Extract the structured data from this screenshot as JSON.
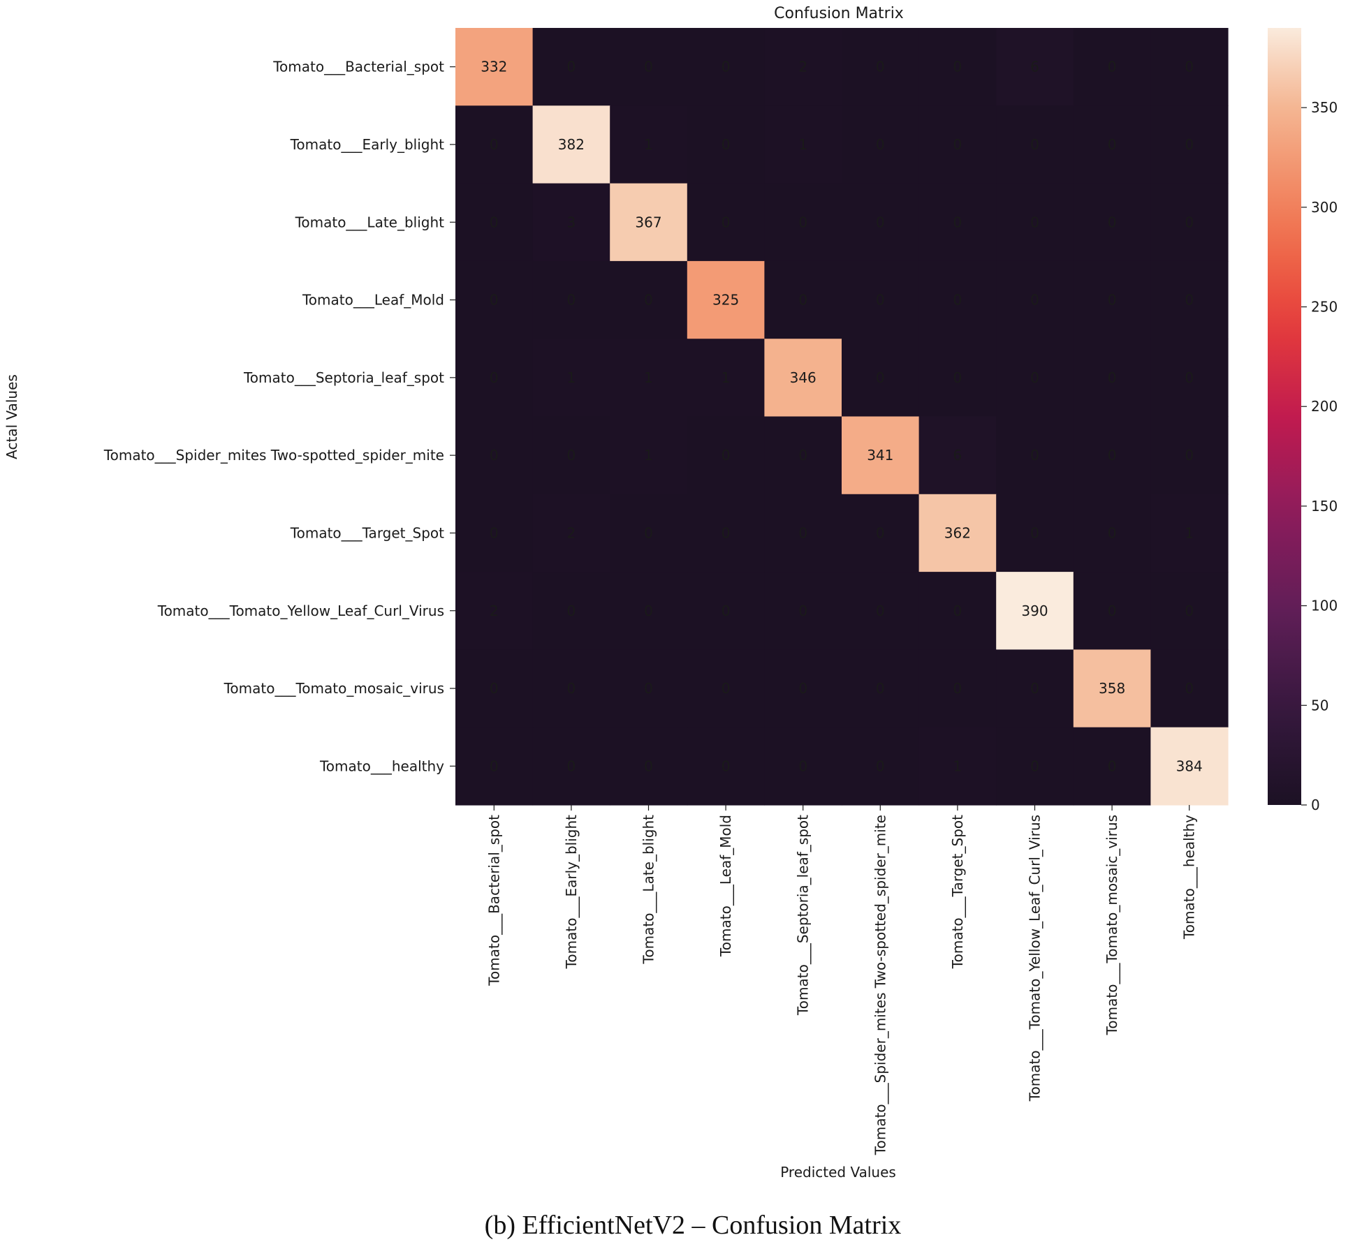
{
  "chart_data": {
    "type": "heatmap",
    "title": "Confusion Matrix",
    "xlabel": "Predicted Values",
    "ylabel": "Actal Values",
    "categories": [
      "Tomato___Bacterial_spot",
      "Tomato___Early_blight",
      "Tomato___Late_blight",
      "Tomato___Leaf_Mold",
      "Tomato___Septoria_leaf_spot",
      "Tomato___Spider_mites Two-spotted_spider_mite",
      "Tomato___Target_Spot",
      "Tomato___Tomato_Yellow_Leaf_Curl_Virus",
      "Tomato___Tomato_mosaic_virus",
      "Tomato___healthy"
    ],
    "matrix": [
      [
        332,
        0,
        0,
        0,
        2,
        0,
        0,
        6,
        0,
        0
      ],
      [
        0,
        382,
        1,
        0,
        1,
        0,
        0,
        0,
        0,
        0
      ],
      [
        0,
        3,
        367,
        0,
        0,
        0,
        0,
        0,
        0,
        0
      ],
      [
        0,
        0,
        0,
        325,
        0,
        0,
        0,
        0,
        0,
        0
      ],
      [
        0,
        1,
        1,
        1,
        346,
        0,
        0,
        0,
        0,
        0
      ],
      [
        0,
        0,
        1,
        0,
        0,
        341,
        6,
        0,
        0,
        0
      ],
      [
        0,
        2,
        0,
        0,
        0,
        0,
        362,
        0,
        0,
        1
      ],
      [
        2,
        0,
        0,
        0,
        0,
        0,
        0,
        390,
        0,
        0
      ],
      [
        0,
        0,
        0,
        0,
        0,
        0,
        0,
        0,
        358,
        0
      ],
      [
        0,
        0,
        0,
        0,
        0,
        0,
        1,
        0,
        0,
        384
      ]
    ],
    "colorbar": {
      "min": 0,
      "max": 390,
      "ticks": [
        0,
        50,
        100,
        150,
        200,
        250,
        300,
        350
      ],
      "colormap": "rocket"
    },
    "caption": "(b) EfficientNetV2 – Confusion Matrix"
  },
  "colors": {
    "background": "#ffffff",
    "text": "#1a1a1a",
    "cell_text_dark_bg": "#ffffff",
    "cell_text_light_bg": "#262626"
  }
}
